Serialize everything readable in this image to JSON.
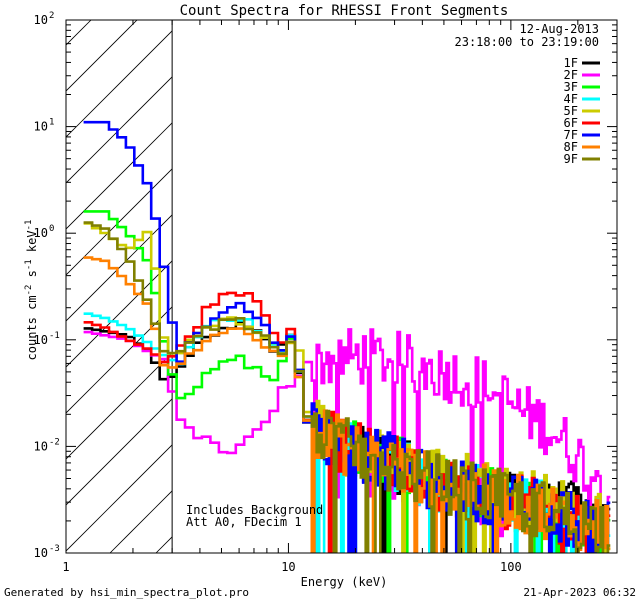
{
  "chart_data": {
    "type": "line",
    "title": "Count Spectra for RHESSI Front Segments",
    "xlabel": "Energy (keV)",
    "ylabel": "counts cm^-2 s^-1 keV^-1",
    "xscale": "log",
    "yscale": "log",
    "xlim": [
      1,
      300
    ],
    "ylim": [
      0.001,
      100
    ],
    "x_ticks": [
      {
        "value": 1,
        "label": "1"
      },
      {
        "value": 10,
        "label": "10"
      },
      {
        "value": 100,
        "label": "100"
      }
    ],
    "y_ticks": [
      {
        "value": 0.001,
        "mant": "10",
        "exp": "-3"
      },
      {
        "value": 0.01,
        "mant": "10",
        "exp": "-2"
      },
      {
        "value": 0.1,
        "mant": "10",
        "exp": "-1"
      },
      {
        "value": 1,
        "mant": "10",
        "exp": "0"
      },
      {
        "value": 10,
        "mant": "10",
        "exp": "1"
      },
      {
        "value": 100,
        "mant": "10",
        "exp": "2"
      }
    ],
    "date": "12-Aug-2013",
    "time_range": "23:18:00 to 23:19:00",
    "shaded_region": {
      "from": 1,
      "to": 3
    },
    "annotations": [
      "Includes Background",
      "Att A0, FDecim 1"
    ],
    "footer_left": "Generated by hsi_min_spectra_plot.pro",
    "footer_right": "21-Apr-2023 06:32",
    "anchors": [
      1.2,
      1.5,
      1.9,
      2.4,
      2.8,
      3.2,
      3.8,
      4.5,
      5.2,
      5.8,
      6.5,
      7.5,
      8.5,
      9.2,
      10.3,
      11.0,
      12.0,
      15,
      20,
      30,
      40,
      60,
      80,
      100,
      150,
      200,
      280
    ],
    "series": [
      {
        "name": "1F",
        "color": "#000000",
        "values": [
          0.13,
          0.12,
          0.11,
          0.075,
          0.04,
          0.05,
          0.09,
          0.1,
          0.13,
          0.14,
          0.13,
          0.11,
          0.08,
          0.08,
          0.12,
          0.06,
          0.018,
          0.013,
          0.009,
          0.007,
          0.005,
          0.004,
          0.0035,
          0.003,
          0.0025,
          0.0025,
          0.0018
        ]
      },
      {
        "name": "2F",
        "color": "#ff00ff",
        "values": [
          0.12,
          0.11,
          0.1,
          0.075,
          0.065,
          0.018,
          0.013,
          0.011,
          0.008,
          0.01,
          0.013,
          0.016,
          0.02,
          0.035,
          0.04,
          0.045,
          0.06,
          0.065,
          0.07,
          0.065,
          0.055,
          0.045,
          0.035,
          0.025,
          0.015,
          0.008,
          0.004
        ]
      },
      {
        "name": "3F",
        "color": "#00ff00",
        "values": [
          1.6,
          1.6,
          1.0,
          0.5,
          0.08,
          0.03,
          0.035,
          0.05,
          0.06,
          0.07,
          0.06,
          0.05,
          0.04,
          0.06,
          0.1,
          0.06,
          0.018,
          0.012,
          0.009,
          0.007,
          0.005,
          0.004,
          0.0035,
          0.003,
          0.0025,
          0.002,
          0.0018
        ]
      },
      {
        "name": "4F",
        "color": "#00ffff",
        "values": [
          0.18,
          0.16,
          0.13,
          0.09,
          0.07,
          0.06,
          0.1,
          0.14,
          0.17,
          0.16,
          0.15,
          0.12,
          0.09,
          0.07,
          0.11,
          0.06,
          0.018,
          0.013,
          0.009,
          0.007,
          0.005,
          0.004,
          0.0035,
          0.003,
          0.0025,
          0.002,
          0.0018
        ]
      },
      {
        "name": "5F",
        "color": "#cccc00",
        "values": [
          1.3,
          1.0,
          0.7,
          1.1,
          0.08,
          0.07,
          0.11,
          0.13,
          0.16,
          0.15,
          0.14,
          0.12,
          0.09,
          0.07,
          0.1,
          0.12,
          0.02,
          0.013,
          0.009,
          0.007,
          0.006,
          0.005,
          0.004,
          0.0035,
          0.003,
          0.0025,
          0.002
        ]
      },
      {
        "name": "6F",
        "color": "#ff0000",
        "values": [
          0.15,
          0.13,
          0.1,
          0.08,
          0.06,
          0.08,
          0.13,
          0.22,
          0.28,
          0.3,
          0.26,
          0.2,
          0.12,
          0.09,
          0.13,
          0.065,
          0.018,
          0.012,
          0.009,
          0.007,
          0.005,
          0.004,
          0.0035,
          0.003,
          0.0025,
          0.002,
          0.0018
        ]
      },
      {
        "name": "7F",
        "color": "#0000ff",
        "values": [
          11,
          11,
          7,
          2.5,
          0.4,
          0.06,
          0.11,
          0.16,
          0.2,
          0.21,
          0.2,
          0.15,
          0.1,
          0.08,
          0.12,
          0.06,
          0.018,
          0.012,
          0.009,
          0.007,
          0.005,
          0.004,
          0.0035,
          0.003,
          0.0025,
          0.002,
          0.0018
        ]
      },
      {
        "name": "8F",
        "color": "#ff8000",
        "values": [
          0.6,
          0.55,
          0.35,
          0.2,
          0.05,
          0.06,
          0.08,
          0.1,
          0.12,
          0.13,
          0.12,
          0.1,
          0.08,
          0.07,
          0.1,
          0.06,
          0.018,
          0.012,
          0.009,
          0.007,
          0.005,
          0.004,
          0.0035,
          0.003,
          0.0025,
          0.002,
          0.0018
        ]
      },
      {
        "name": "9F",
        "color": "#808000",
        "values": [
          1.3,
          1.1,
          0.6,
          0.2,
          0.07,
          0.08,
          0.11,
          0.13,
          0.15,
          0.16,
          0.14,
          0.12,
          0.09,
          0.07,
          0.1,
          0.06,
          0.018,
          0.012,
          0.009,
          0.007,
          0.005,
          0.004,
          0.0035,
          0.003,
          0.0025,
          0.002,
          0.0018
        ]
      }
    ]
  }
}
